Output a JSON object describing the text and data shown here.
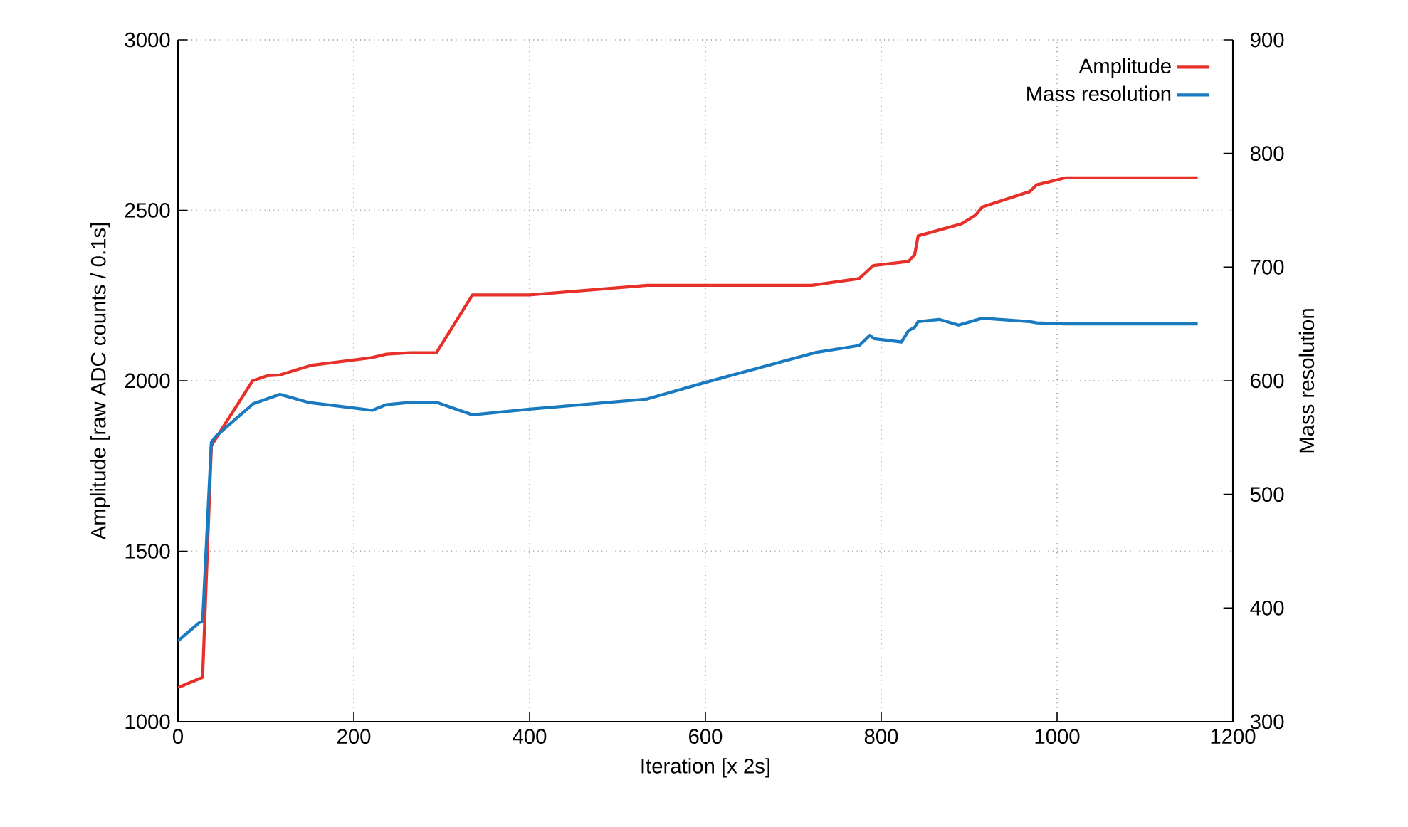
{
  "chart_data": {
    "type": "line",
    "xlabel": "Iteration [x 2s]",
    "ylabel": "Amplitude [raw ADC counts / 0.1s]",
    "y2label": "Mass resolution",
    "xlim": [
      0,
      1200
    ],
    "xticks": [
      0,
      200,
      400,
      600,
      800,
      1000,
      1200
    ],
    "ylim": [
      1000,
      3000
    ],
    "yticks": [
      1000,
      1500,
      2000,
      2500,
      3000
    ],
    "y2lim": [
      300,
      900
    ],
    "y2ticks": [
      300,
      400,
      500,
      600,
      700,
      800,
      900
    ],
    "grid": true,
    "legend": "top right",
    "series": [
      {
        "name": "Amplitude",
        "color": "#e8302a",
        "axis": "y",
        "x": [
          0,
          28,
          38,
          85,
          102,
          116,
          151,
          221,
          237,
          264,
          294,
          335,
          400,
          534,
          721,
          775,
          791,
          831,
          838,
          842,
          891,
          907,
          915,
          969,
          977,
          1009,
          1160
        ],
        "values": [
          1100,
          1130,
          1810,
          2000,
          2015,
          2017,
          2045,
          2068,
          2078,
          2082,
          2082,
          2252,
          2252,
          2280,
          2280,
          2300,
          2338,
          2350,
          2370,
          2425,
          2460,
          2485,
          2510,
          2555,
          2575,
          2595,
          2595
        ]
      },
      {
        "name": "Mass resolution",
        "color": "#1a7abf",
        "axis": "y2",
        "x": [
          0,
          24,
          28,
          38,
          43,
          86,
          116,
          148,
          221,
          237,
          264,
          294,
          335,
          400,
          534,
          602,
          726,
          775,
          787,
          792,
          823,
          831,
          838,
          842,
          866,
          888,
          915,
          969,
          977,
          1009,
          1160
        ],
        "values": [
          371,
          387,
          388,
          546,
          551,
          580,
          588,
          581,
          574,
          579,
          581,
          581,
          570,
          575,
          584,
          599,
          625,
          631,
          640,
          637,
          634,
          644,
          647,
          652,
          654,
          649,
          655,
          652,
          651,
          650,
          650
        ]
      }
    ]
  }
}
